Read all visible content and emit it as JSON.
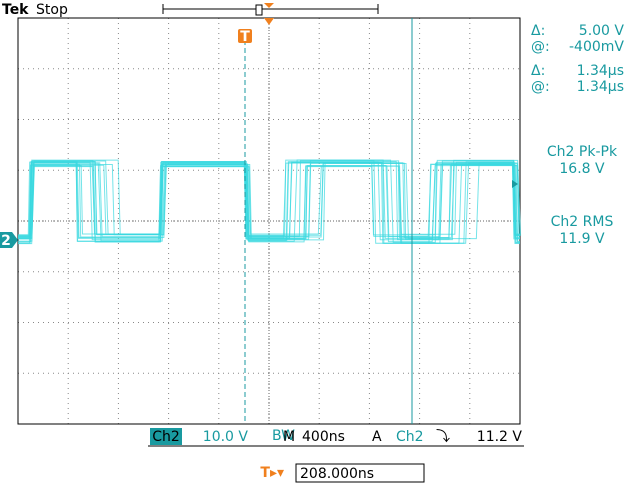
{
  "header": {
    "brand": "Tek",
    "state": "Stop"
  },
  "cursors": {
    "v_delta_label": "Δ:",
    "v_delta": "5.00 V",
    "v_at_label": "@:",
    "v_at": "-400mV",
    "t_delta_label": "Δ:",
    "t_delta": "1.34µs",
    "t_at_label": "@:",
    "t_at": "1.34µs"
  },
  "measurements": [
    {
      "name": "Ch2 Pk-Pk",
      "value": "16.8 V"
    },
    {
      "name": "Ch2 RMS",
      "value": "11.9 V"
    }
  ],
  "markers": {
    "trigger": "T",
    "channel": "2"
  },
  "status": {
    "channel": "Ch2",
    "scale": "10.0 V",
    "bw": "BW",
    "m": "M",
    "timebase": "400ns",
    "a": "A",
    "trig_source": "Ch2",
    "trig_slope": "⤵",
    "trig_level": "11.2 V"
  },
  "position": {
    "icon": "T▸▾",
    "value": "208.000ns"
  }
}
